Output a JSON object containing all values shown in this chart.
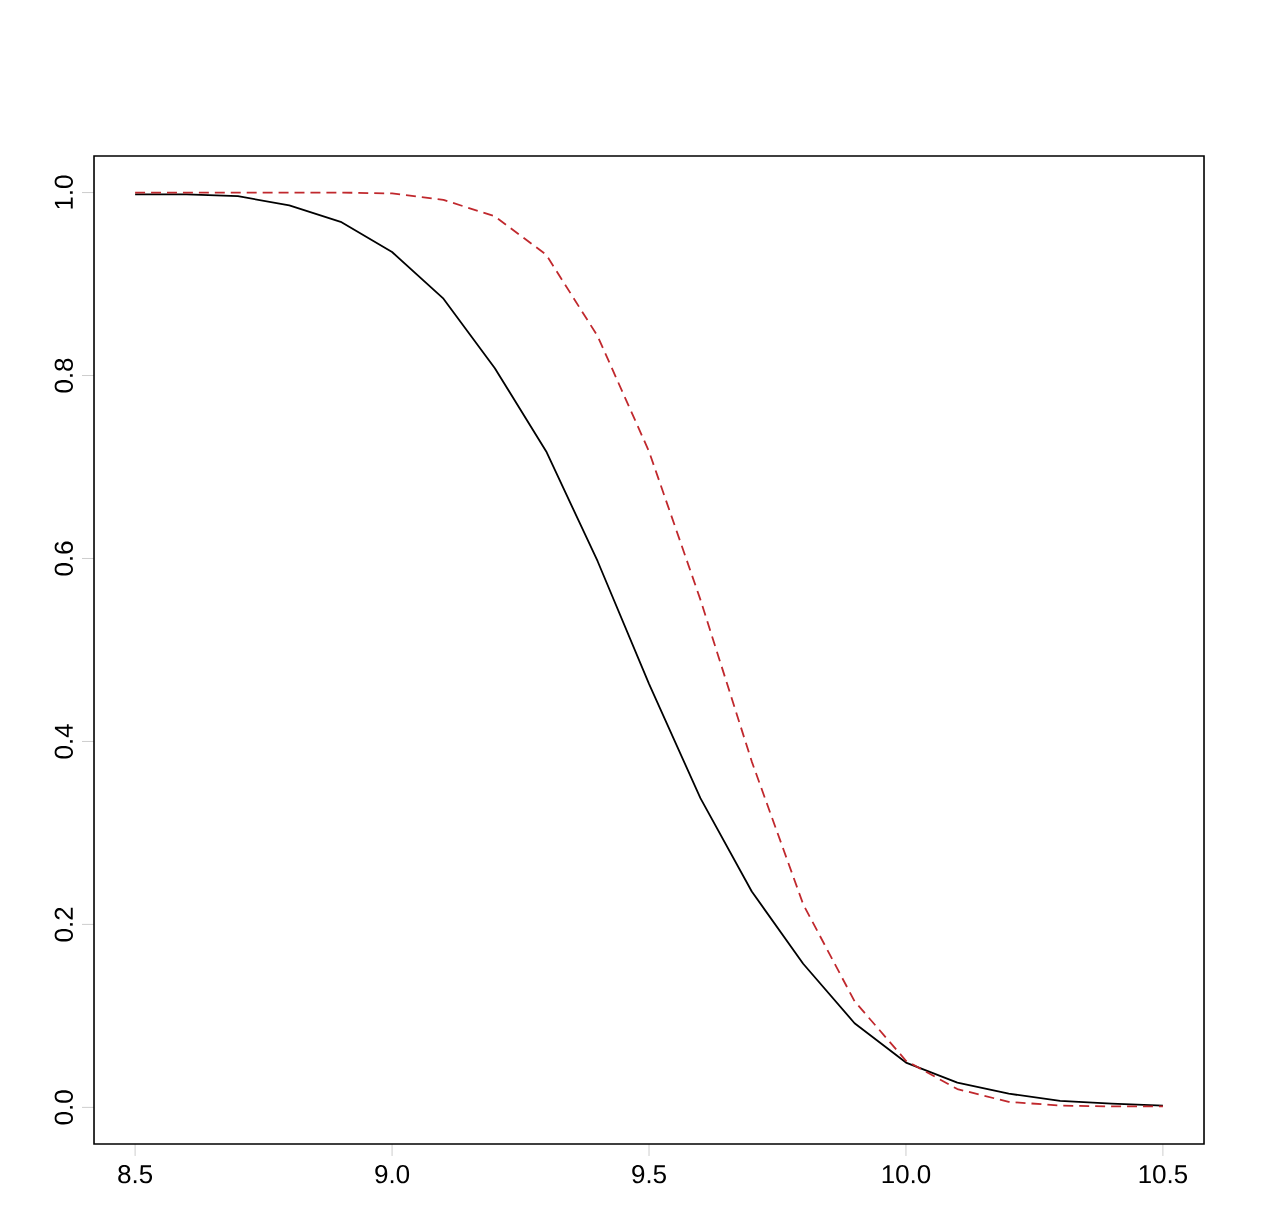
{
  "chart_data": {
    "type": "line",
    "x": [
      8.5,
      8.6,
      8.7,
      8.8,
      8.9,
      9.0,
      9.1,
      9.2,
      9.3,
      9.4,
      9.5,
      9.6,
      9.7,
      9.8,
      9.9,
      10.0,
      10.1,
      10.2,
      10.3,
      10.4,
      10.5
    ],
    "series": [
      {
        "color": "#000000",
        "line_style": "solid",
        "values": [
          0.998,
          0.998,
          0.996,
          0.986,
          0.968,
          0.935,
          0.884,
          0.808,
          0.717,
          0.597,
          0.463,
          0.338,
          0.236,
          0.157,
          0.092,
          0.049,
          0.027,
          0.015,
          0.007,
          0.004,
          0.002
        ]
      },
      {
        "color": "#c0282d",
        "line_style": "dashed",
        "values": [
          1.0,
          1.0,
          1.0,
          1.0,
          1.0,
          0.999,
          0.992,
          0.974,
          0.932,
          0.843,
          0.717,
          0.555,
          0.378,
          0.222,
          0.116,
          0.051,
          0.02,
          0.006,
          0.002,
          0.001,
          0.001
        ]
      }
    ],
    "xlim": [
      8.42,
      10.58
    ],
    "ylim": [
      -0.04,
      1.04
    ],
    "xticks": [
      8.5,
      {
        "value": 9.0,
        "label": "9.0"
      },
      9.5,
      {
        "value": 10.0,
        "label": "10.0"
      },
      10.5
    ],
    "yticks": [
      {
        "value": 0.0,
        "label": "0.0"
      },
      0.2,
      0.4,
      0.6,
      0.8,
      {
        "value": 1.0,
        "label": "1.0"
      }
    ],
    "marker": "none"
  }
}
